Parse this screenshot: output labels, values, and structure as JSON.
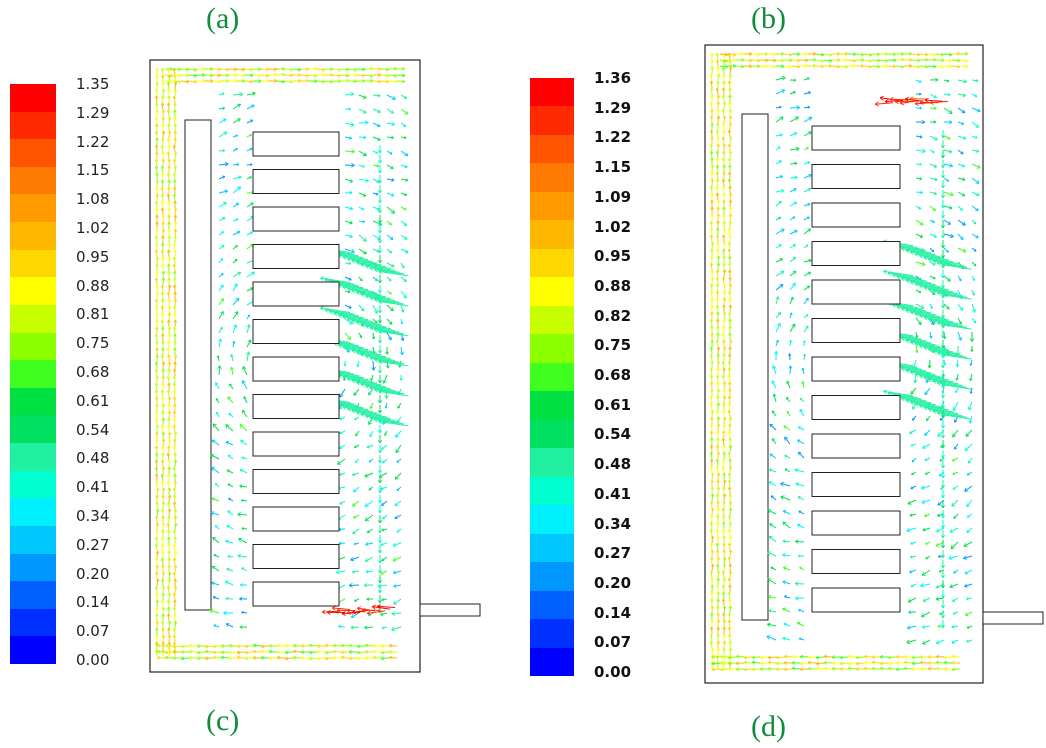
{
  "panel_labels": {
    "a": "(a)",
    "b": "(b)",
    "c": "(c)",
    "d": "(d)"
  },
  "colorbar_left": {
    "ticks": [
      "1.35",
      "1.29",
      "1.22",
      "1.15",
      "1.08",
      "1.02",
      "0.95",
      "0.88",
      "0.81",
      "0.75",
      "0.68",
      "0.61",
      "0.54",
      "0.48",
      "0.41",
      "0.34",
      "0.27",
      "0.20",
      "0.14",
      "0.07",
      "0.00"
    ]
  },
  "colorbar_right": {
    "ticks": [
      "1.36",
      "1.29",
      "1.22",
      "1.15",
      "1.09",
      "1.02",
      "0.95",
      "0.88",
      "0.82",
      "0.75",
      "0.68",
      "0.61",
      "0.54",
      "0.48",
      "0.41",
      "0.34",
      "0.27",
      "0.20",
      "0.14",
      "0.07",
      "0.00"
    ]
  },
  "colors": {
    "scale": [
      "#ff0000",
      "#ff2a00",
      "#ff5500",
      "#ff7a00",
      "#ff9a00",
      "#ffb800",
      "#ffd700",
      "#ffff00",
      "#c8ff00",
      "#8cff00",
      "#40ff20",
      "#00e040",
      "#00e060",
      "#20f0a0",
      "#00ffd0",
      "#00f0ff",
      "#00c8ff",
      "#0098ff",
      "#0060ff",
      "#0030ff",
      "#0000ff"
    ]
  }
}
